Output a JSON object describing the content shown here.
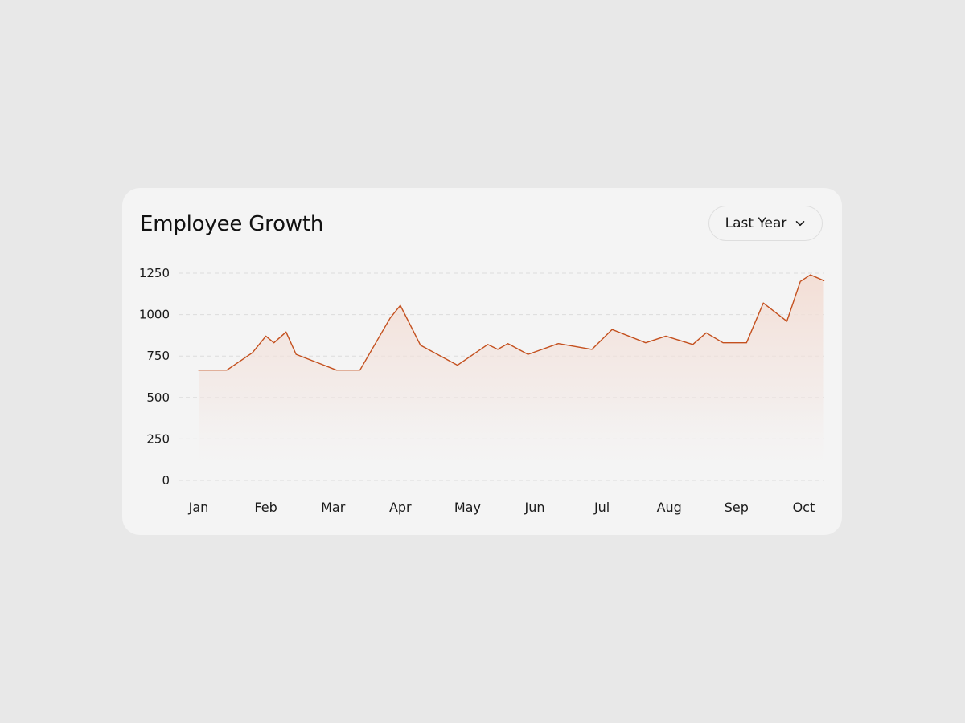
{
  "header": {
    "title": "Employee Growth",
    "range_label": "Last Year"
  },
  "icons": {
    "dropdown": "chevron-down-icon"
  },
  "colors": {
    "line": "#c4501e",
    "fill_top": "#f3dcd2",
    "grid": "#dcdcdc",
    "card": "#f4f4f4",
    "background": "#e8e8e8"
  },
  "chart_data": {
    "type": "area",
    "title": "Employee Growth",
    "xlabel": "",
    "ylabel": "",
    "ylim": [
      0,
      1250
    ],
    "yticks": [
      0,
      250,
      500,
      750,
      1000,
      1250
    ],
    "grid": true,
    "categories": [
      "Jan",
      "Feb",
      "Mar",
      "Apr",
      "May",
      "Jun",
      "Jul",
      "Aug",
      "Sep",
      "Oct"
    ],
    "series": [
      {
        "values": [
          {
            "x": 0.0,
            "y": 665
          },
          {
            "x": 0.42,
            "y": 665
          },
          {
            "x": 0.8,
            "y": 770
          },
          {
            "x": 1.0,
            "y": 870
          },
          {
            "x": 1.12,
            "y": 830
          },
          {
            "x": 1.3,
            "y": 895
          },
          {
            "x": 1.45,
            "y": 760
          },
          {
            "x": 1.8,
            "y": 705
          },
          {
            "x": 2.05,
            "y": 665
          },
          {
            "x": 2.4,
            "y": 665
          },
          {
            "x": 2.85,
            "y": 980
          },
          {
            "x": 3.0,
            "y": 1055
          },
          {
            "x": 3.3,
            "y": 815
          },
          {
            "x": 3.85,
            "y": 695
          },
          {
            "x": 4.3,
            "y": 820
          },
          {
            "x": 4.45,
            "y": 790
          },
          {
            "x": 4.6,
            "y": 825
          },
          {
            "x": 4.9,
            "y": 760
          },
          {
            "x": 5.35,
            "y": 825
          },
          {
            "x": 5.85,
            "y": 790
          },
          {
            "x": 6.15,
            "y": 910
          },
          {
            "x": 6.65,
            "y": 830
          },
          {
            "x": 6.95,
            "y": 870
          },
          {
            "x": 7.35,
            "y": 820
          },
          {
            "x": 7.55,
            "y": 890
          },
          {
            "x": 7.8,
            "y": 830
          },
          {
            "x": 8.15,
            "y": 830
          },
          {
            "x": 8.4,
            "y": 1070
          },
          {
            "x": 8.75,
            "y": 960
          },
          {
            "x": 8.95,
            "y": 1200
          },
          {
            "x": 9.1,
            "y": 1240
          },
          {
            "x": 9.3,
            "y": 1205
          }
        ]
      }
    ]
  }
}
